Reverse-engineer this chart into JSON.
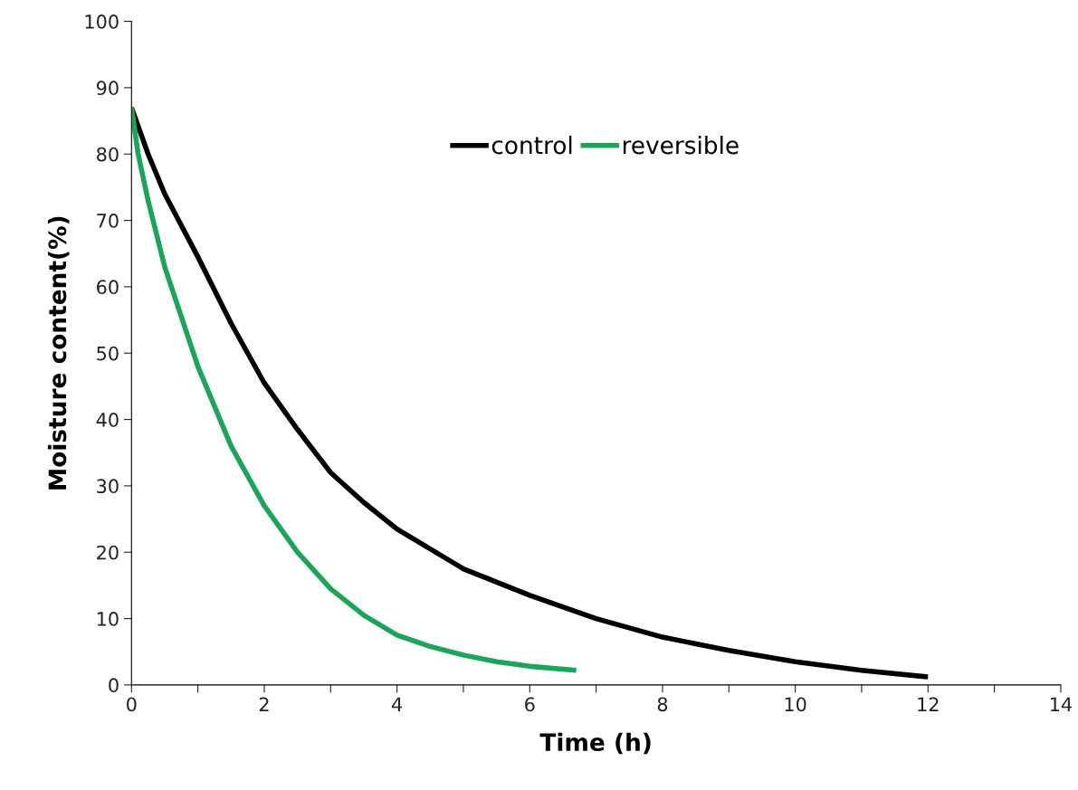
{
  "chart_data": {
    "type": "line",
    "xlabel": "Time (h)",
    "ylabel": "Moisture content(%)",
    "xlim": [
      0,
      14
    ],
    "ylim": [
      0,
      100
    ],
    "xticks": [
      0,
      {
        "value": 1,
        "label": null
      },
      2,
      {
        "value": 3,
        "label": null
      },
      4,
      {
        "value": 5,
        "label": null
      },
      6,
      {
        "value": 7,
        "label": null
      },
      8,
      {
        "value": 9,
        "label": null
      },
      10,
      {
        "value": 11,
        "label": null
      },
      12,
      {
        "value": 13,
        "label": null
      },
      14
    ],
    "yticks": [
      0,
      10,
      20,
      30,
      40,
      50,
      60,
      70,
      80,
      90,
      100
    ],
    "grid": false,
    "legend": "top",
    "marker": "none",
    "line_style": "solid",
    "series": [
      {
        "name": "control",
        "color": "#000000",
        "x": [
          0,
          0.25,
          0.5,
          1,
          1.5,
          2,
          2.5,
          3,
          3.5,
          4,
          5,
          6,
          7,
          8,
          9,
          10,
          11,
          12
        ],
        "values": [
          87,
          80,
          74,
          64.5,
          54.5,
          45.5,
          38.5,
          32,
          27.5,
          23.5,
          17.5,
          13.5,
          10,
          7.2,
          5.2,
          3.5,
          2.2,
          1.2
        ]
      },
      {
        "name": "reversible",
        "color": "#1aa55a",
        "x": [
          0,
          0.1,
          0.25,
          0.5,
          1,
          1.5,
          2,
          2.5,
          3,
          3.5,
          4,
          4.5,
          5,
          5.5,
          6,
          6.7
        ],
        "values": [
          87,
          80,
          73,
          63,
          48,
          36,
          27,
          20,
          14.5,
          10.5,
          7.5,
          5.8,
          4.5,
          3.5,
          2.8,
          2.2
        ]
      }
    ]
  }
}
